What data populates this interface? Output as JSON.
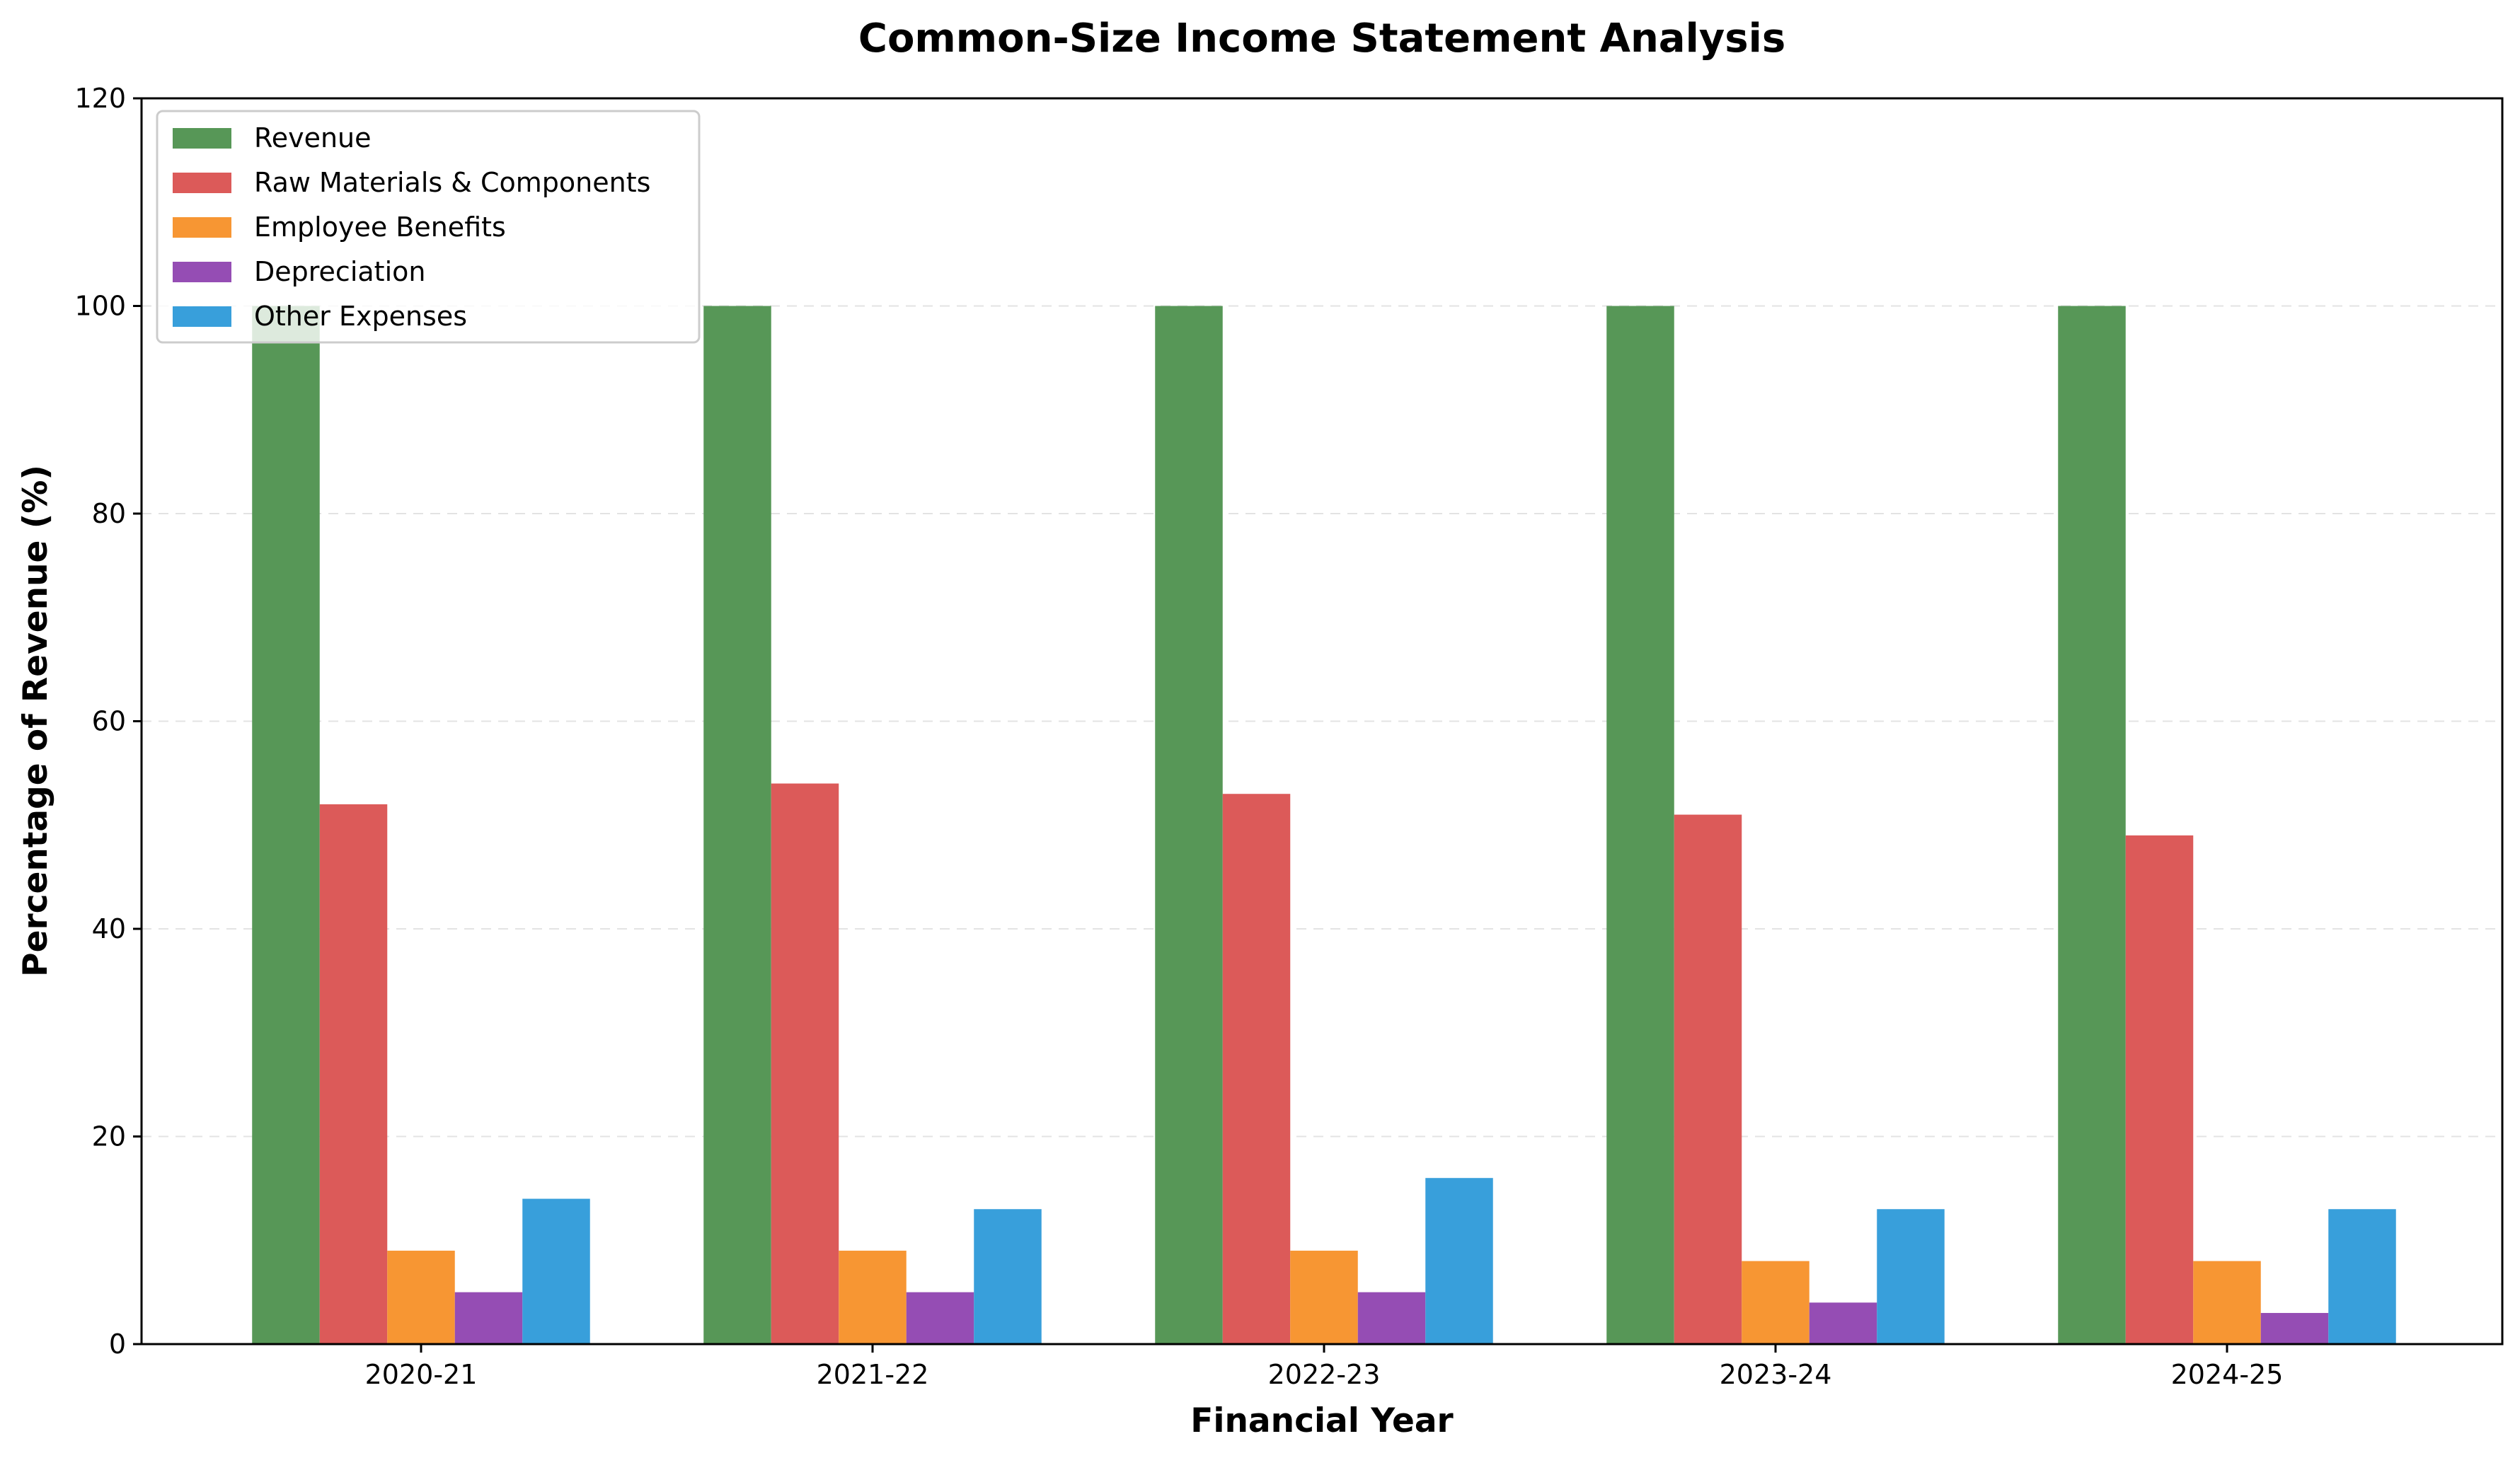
{
  "chart_data": {
    "type": "bar",
    "title": "Common-Size Income Statement Analysis",
    "xlabel": "Financial Year",
    "ylabel": "Percentage of Revenue (%)",
    "categories": [
      "2020-21",
      "2021-22",
      "2022-23",
      "2023-24",
      "2024-25"
    ],
    "ylim": [
      0,
      120
    ],
    "yticks": [
      0,
      20,
      40,
      60,
      80,
      100,
      120
    ],
    "grid": "y-dashed",
    "legend_position": "top-left",
    "series": [
      {
        "name": "Revenue",
        "color": "#579757",
        "values": [
          100,
          100,
          100,
          100,
          100
        ]
      },
      {
        "name": "Raw Materials & Components",
        "color": "#dc5a59",
        "values": [
          52,
          54,
          53,
          51,
          49
        ]
      },
      {
        "name": "Employee Benefits",
        "color": "#f79633",
        "values": [
          9,
          9,
          9,
          8,
          8
        ]
      },
      {
        "name": "Depreciation",
        "color": "#954db4",
        "values": [
          5,
          5,
          5,
          4,
          3
        ]
      },
      {
        "name": "Other Expenses",
        "color": "#389fdb",
        "values": [
          14,
          13,
          16,
          13,
          13
        ]
      }
    ]
  }
}
